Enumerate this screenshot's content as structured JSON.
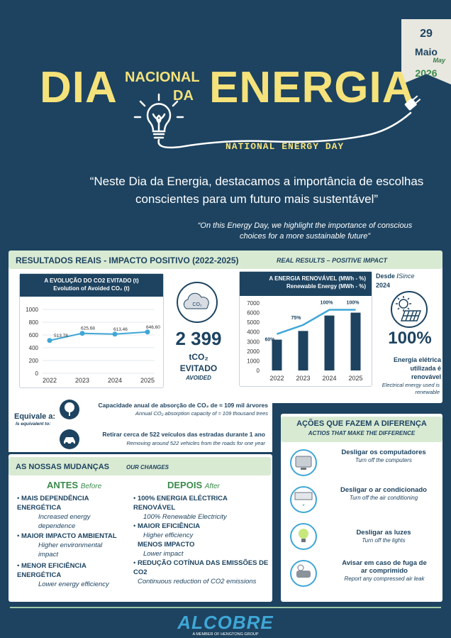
{
  "date": {
    "day": "29",
    "month": "Maio",
    "month_en": "May",
    "year": "2026"
  },
  "title": {
    "dia": "DIA",
    "nacional": "NACIONAL",
    "da": "DA",
    "energia": "ENERGIA",
    "english": "NATIONAL ENERGY DAY"
  },
  "quote": {
    "pt": "“Neste Dia da Energia, destacamos a importância de escolhas conscientes para um futuro mais sustentável”",
    "en": "“On this Energy Day, we highlight the importance of conscious choices for a more sustainable future”"
  },
  "results": {
    "title": "RESULTADOS REAIS - IMPACTO POSITIVO (2022-2025)",
    "subtitle": "REAL RESULTS – POSITIVE IMPACT",
    "co2_chart": {
      "title": "A EVOLUÇÃO DO CO2 EVITADO (t)",
      "subtitle": "Evolution of Avoided CO₂ (t)"
    },
    "co2_icon_label": "CO₂",
    "co2_total": "2 399",
    "co2_unit": "tCO₂",
    "co2_evitado": "EVITADO",
    "co2_avoided": "Avoided",
    "renew_chart": {
      "title": "A ENERGIA RENOVÁVEL (MWh - %)",
      "subtitle": "Renewable Energy (MWh - %)"
    },
    "since": "Desde /",
    "since_en": "Since",
    "since_year": "2024",
    "renew_pct": "100%",
    "renew_pt": "Energia elétrica utilizada é renovável",
    "renew_en": "Electrical energy used is renewable"
  },
  "chart_data": [
    {
      "type": "line",
      "title": "A EVOLUÇÃO DO CO2 EVITADO (t)",
      "categories": [
        "2022",
        "2023",
        "2024",
        "2025"
      ],
      "values": [
        513.78,
        625.68,
        613.46,
        646.6
      ],
      "labels": [
        "513,78",
        "625,68",
        "613,46",
        "646,60"
      ],
      "yticks": [
        "0",
        "200",
        "400",
        "600",
        "800",
        "1000"
      ],
      "ylim": [
        0,
        1000
      ],
      "color": "#3fa7d6"
    },
    {
      "type": "bar",
      "title": "A ENERGIA RENOVÁVEL (MWh - %)",
      "categories": [
        "2022",
        "2023",
        "2024",
        "2025"
      ],
      "values": [
        3200,
        4100,
        5700,
        6000
      ],
      "pct": [
        "60%",
        "75%",
        "100%",
        "100%"
      ],
      "pct_values": [
        60,
        75,
        100,
        100
      ],
      "yticks": [
        "0",
        "1000",
        "2000",
        "3000",
        "4000",
        "5000",
        "6000",
        "7000"
      ],
      "ylim": [
        0,
        7000
      ],
      "bar_color": "#1d4360",
      "line_color": "#3fa7d6"
    }
  ],
  "equivalent": {
    "label": "Equivale a:",
    "label_en": "Is equivalent to:",
    "items": [
      {
        "pt": "Capacidade anual de absorção de CO₂ de ≈ 109 mil árvores",
        "en": "Annual CO₂ absorption capacity of ≈ 109 thousand trees",
        "icon": "tree-icon"
      },
      {
        "pt": "Retirar cerca de 522 veículos das estradas durante 1 ano",
        "en": "Removing around 522 vehicles from the roads for one year",
        "icon": "car-icon"
      }
    ]
  },
  "changes": {
    "title": "AS NOSSAS MUDANÇAS",
    "subtitle": "OUR CHANGES",
    "before": {
      "title": "ANTES",
      "title_en": "Before",
      "items": [
        {
          "pt": "MAIS DEPENDÊNCIA ENERGÉTICA",
          "en": "Increased energy dependence"
        },
        {
          "pt": "MAIOR IMPACTO AMBIENTAL",
          "en": "Higher environmental impact"
        },
        {
          "pt": "MENOR EFICIÊNCIA ENERGÉTICA",
          "en": "Lower energy efficiency"
        }
      ]
    },
    "after": {
      "title": "DEPOIS",
      "title_en": "After",
      "items": [
        {
          "pt": "100% ENERGIA ELÉCTRICA RENOVÁVEL",
          "en": "100% Renewable Electricity"
        },
        {
          "pt": "MAIOR EFICIÊNCIA",
          "en": "Higher efficiency"
        },
        {
          "pt": "MENOS IMPACTO",
          "en": "Lower impact"
        },
        {
          "pt": "REDUÇÃO COTÍNUA DAS EMISSÕES DE CO2",
          "en": "Continuous reduction of CO2 emissions"
        }
      ]
    }
  },
  "actions": {
    "title": "AÇÕES QUE FAZEM A DIFERENÇA",
    "subtitle": "ACTIOS THAT MAKE THE DIFFERENCE",
    "items": [
      {
        "pt": "Desligar os computadores",
        "en": "Turn off the computers",
        "icon": "computer-icon"
      },
      {
        "pt": "Desligar o ar condicionado",
        "en": "Turn off the air conditioning",
        "icon": "air-conditioner-icon"
      },
      {
        "pt": "Desligar as luzes",
        "en": "Turn off the lights",
        "icon": "light-bulb-icon"
      },
      {
        "pt": "Avisar em caso de fuga de ar comprimido",
        "en": "Report any compressed air leak",
        "icon": "compressor-icon"
      }
    ]
  },
  "footer": {
    "logo": "ALCOBRE",
    "tagline": "A MEMBER OF HENGTONG GROUP"
  }
}
